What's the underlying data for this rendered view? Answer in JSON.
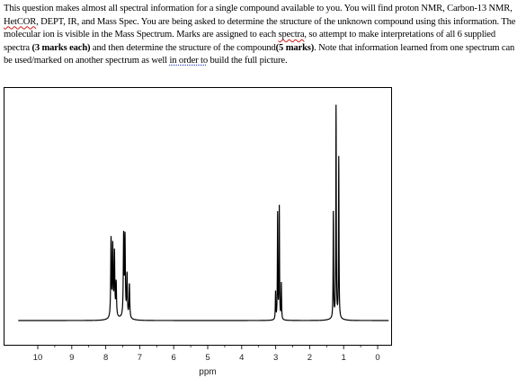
{
  "question": {
    "p1": "This question makes almost all spectral information for a single compound available to you.  You will find proton NMR, Carbon-13 NMR, ",
    "hetcor": "HetCOR",
    "p2": ", DEPT, IR, and Mass Spec.  You are being asked to determine the structure of the unknown compound using this information.  The molecular ion is visible in the Mass Spectrum.  Marks are assigned to each ",
    "spectra": "spectra",
    "p3": ", so attempt to make interpretations of all 6 supplied spectra ",
    "bold1": "(3 marks each)",
    "p4": " and then determine the structure of the compound",
    "bold2": "(5 marks)",
    "p5": ".  Note that information learned from one spectrum can be used/marked on another spectrum as well ",
    "in_order_to": "in order to",
    "p6": " build the full picture."
  },
  "chart_data": {
    "type": "line",
    "title": "",
    "xlabel": "ppm",
    "ylabel": "",
    "xlim": [
      10.6,
      -0.3
    ],
    "x_reversed": true,
    "x_ticks": [
      "10",
      "9",
      "8",
      "7",
      "6",
      "5",
      "4",
      "3",
      "2",
      "1",
      "0"
    ],
    "grid": false,
    "line_color": "#000000",
    "peaks": [
      {
        "shift": 7.87,
        "intensity": 0.37,
        "width": 0.012
      },
      {
        "shift": 7.82,
        "intensity": 0.33,
        "width": 0.012
      },
      {
        "shift": 7.77,
        "intensity": 0.3,
        "width": 0.012
      },
      {
        "shift": 7.72,
        "intensity": 0.16,
        "width": 0.012
      },
      {
        "shift": 7.5,
        "intensity": 0.38,
        "width": 0.012
      },
      {
        "shift": 7.46,
        "intensity": 0.37,
        "width": 0.012
      },
      {
        "shift": 7.4,
        "intensity": 0.2,
        "width": 0.012
      },
      {
        "shift": 7.33,
        "intensity": 0.16,
        "width": 0.012
      },
      {
        "shift": 3.03,
        "intensity": 0.13,
        "width": 0.008
      },
      {
        "shift": 2.97,
        "intensity": 0.5,
        "width": 0.008
      },
      {
        "shift": 2.92,
        "intensity": 0.53,
        "width": 0.008
      },
      {
        "shift": 2.86,
        "intensity": 0.17,
        "width": 0.008
      },
      {
        "shift": 1.33,
        "intensity": 0.5,
        "width": 0.008
      },
      {
        "shift": 1.25,
        "intensity": 1.0,
        "width": 0.008
      },
      {
        "shift": 1.17,
        "intensity": 0.76,
        "width": 0.008
      }
    ]
  }
}
